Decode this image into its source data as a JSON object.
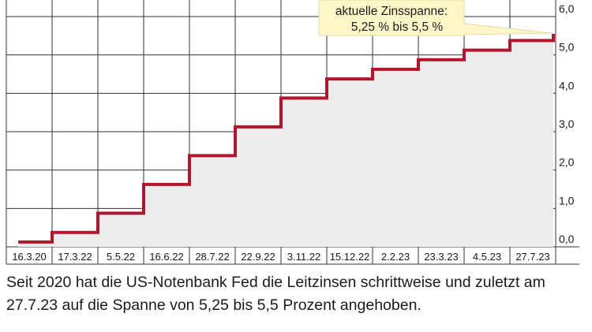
{
  "chart_data": {
    "type": "line",
    "step": true,
    "x_labels": [
      "16.3.20",
      "17.3.22",
      "5.5.22",
      "16.6.22",
      "28.7.22",
      "22.9.22",
      "3.11.22",
      "15.12.22",
      "2.2.23",
      "23.3.23",
      "4.5.23",
      "27.7.23"
    ],
    "series": [
      {
        "values": [
          0.125,
          0.375,
          0.875,
          1.625,
          2.375,
          3.125,
          3.875,
          4.375,
          4.625,
          4.875,
          5.125,
          5.375
        ]
      }
    ],
    "y_ticks": [
      "0,0",
      "1,0",
      "2,0",
      "3,0",
      "4,0",
      "5,0",
      "6,0"
    ],
    "ylim": [
      0,
      6
    ],
    "grid": true,
    "y_axis_side": "right",
    "line_color": "#b3162c",
    "area_color": "#ececec",
    "annotation": {
      "line1": "aktuelle  Zinsspanne:",
      "line2": "5,25  %  bis  5,5  %",
      "fill": "#fff7c7"
    }
  },
  "caption": "Seit 2020 hat die US-Notenbank Fed die Leitzinsen schrittweise und zuletzt am 27.7.23 auf die Spanne von 5,25 bis 5,5 Prozent angehoben."
}
